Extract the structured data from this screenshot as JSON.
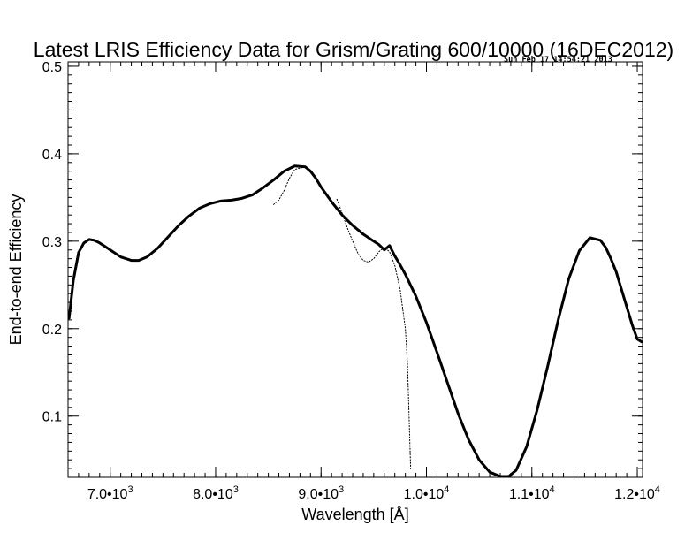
{
  "chart_data": {
    "type": "line",
    "title": "Latest LRIS Efficiency Data for Grism/Grating 600/10000 (16DEC2012)",
    "timestamp": "Sun Feb 17 14:54:21 2013",
    "xlabel": "Wavelength [Å]",
    "ylabel": "End-to-end Efficiency",
    "xlim": [
      6600,
      12050
    ],
    "ylim": [
      0.03,
      0.505
    ],
    "xticks": [
      {
        "value": 7000,
        "mant": "7.0",
        "exp": "3"
      },
      {
        "value": 8000,
        "mant": "8.0",
        "exp": "3"
      },
      {
        "value": 9000,
        "mant": "9.0",
        "exp": "3"
      },
      {
        "value": 10000,
        "mant": "1.0",
        "exp": "4"
      },
      {
        "value": 11000,
        "mant": "1.1",
        "exp": "4"
      },
      {
        "value": 12000,
        "mant": "1.2",
        "exp": "4"
      }
    ],
    "xminor_step": 100,
    "yticks": [
      {
        "value": 0.1,
        "label": "0.1"
      },
      {
        "value": 0.2,
        "label": "0.2"
      },
      {
        "value": 0.3,
        "label": "0.3"
      },
      {
        "value": 0.4,
        "label": "0.4"
      },
      {
        "value": 0.5,
        "label": "0.5"
      }
    ],
    "yminor_step": 0.01,
    "grid": false,
    "series": [
      {
        "style": "solid",
        "x": [
          6610,
          6650,
          6700,
          6750,
          6800,
          6850,
          6900,
          6950,
          7000,
          7100,
          7200,
          7270,
          7350,
          7450,
          7550,
          7650,
          7750,
          7850,
          7950,
          8050,
          8150,
          8250,
          8350,
          8450,
          8550,
          8650,
          8750,
          8850,
          8900,
          8950,
          9000,
          9100,
          9200,
          9300,
          9400,
          9500,
          9550,
          9600,
          9650,
          9700,
          9750,
          9800,
          9900,
          10000,
          10100,
          10200,
          10300,
          10400,
          10500,
          10600,
          10700,
          10780,
          10850,
          10950,
          11050,
          11150,
          11250,
          11350,
          11450,
          11550,
          11650,
          11700,
          11750,
          11800,
          11850,
          11900,
          11950,
          12000,
          12040
        ],
        "y": [
          0.212,
          0.255,
          0.287,
          0.298,
          0.302,
          0.301,
          0.298,
          0.294,
          0.29,
          0.282,
          0.278,
          0.278,
          0.282,
          0.292,
          0.305,
          0.318,
          0.329,
          0.338,
          0.343,
          0.346,
          0.347,
          0.349,
          0.353,
          0.361,
          0.37,
          0.38,
          0.386,
          0.385,
          0.38,
          0.372,
          0.362,
          0.345,
          0.33,
          0.318,
          0.308,
          0.3,
          0.296,
          0.29,
          0.295,
          0.283,
          0.273,
          0.262,
          0.237,
          0.207,
          0.173,
          0.138,
          0.103,
          0.073,
          0.05,
          0.036,
          0.031,
          0.031,
          0.038,
          0.065,
          0.107,
          0.157,
          0.21,
          0.257,
          0.289,
          0.304,
          0.301,
          0.293,
          0.28,
          0.265,
          0.245,
          0.225,
          0.205,
          0.188,
          0.185
        ]
      },
      {
        "style": "dotted",
        "x": [
          8550,
          8600,
          8650,
          8700,
          8750,
          8850
        ],
        "y": [
          0.342,
          0.347,
          0.358,
          0.372,
          0.382,
          0.385
        ]
      },
      {
        "style": "dotted",
        "x": [
          9150,
          9200,
          9250,
          9300,
          9350,
          9400,
          9450,
          9500,
          9550,
          9600,
          9650,
          9700,
          9750,
          9800,
          9820,
          9835,
          9850
        ],
        "y": [
          0.348,
          0.332,
          0.315,
          0.3,
          0.286,
          0.278,
          0.276,
          0.28,
          0.288,
          0.293,
          0.288,
          0.272,
          0.245,
          0.2,
          0.16,
          0.1,
          0.04
        ]
      }
    ]
  }
}
